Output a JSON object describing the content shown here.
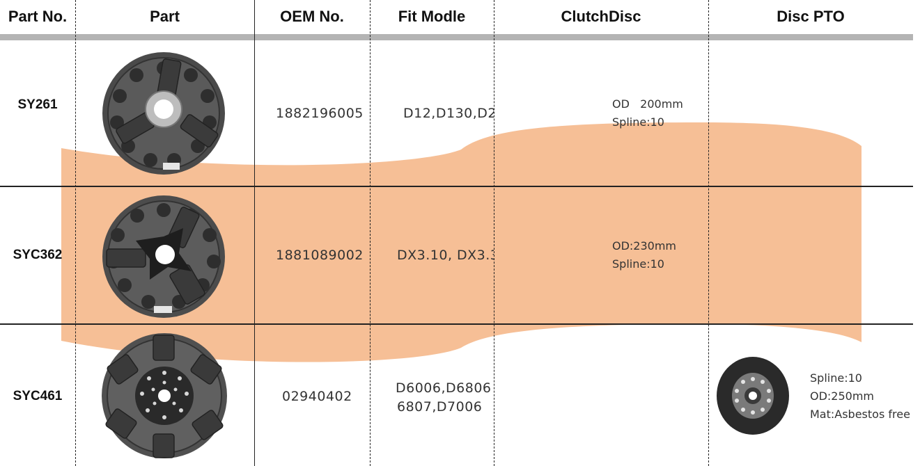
{
  "headers": {
    "part_no": "Part No.",
    "part": "Part",
    "oem_no": "OEM No.",
    "fit_model": "Fit Modle",
    "clutch_disc": "ClutchDisc",
    "disc_pto": "Disc PTO"
  },
  "rows": [
    {
      "part_no": "SY261",
      "part_icon": "clutch-pressure-plate",
      "oem_no": "1882196005",
      "fit_model": [
        "D12,D130,D2"
      ],
      "clutch_disc": [
        "OD   200mm",
        "Spline:10"
      ],
      "disc_pto": []
    },
    {
      "part_no": "SYC362",
      "part_icon": "clutch-pressure-plate",
      "oem_no": "1881089002",
      "fit_model": [
        "DX3.10, DX3.3"
      ],
      "clutch_disc": [
        "OD:230mm",
        "Spline:10"
      ],
      "disc_pto": []
    },
    {
      "part_no": "SYC461",
      "part_icon": "clutch-pressure-plate",
      "oem_no": "02940402",
      "fit_model": [
        "D6006,D6806",
        "6807,D7006"
      ],
      "clutch_disc": [],
      "disc_pto": [
        "Spline:10",
        "OD:250mm",
        "Mat:Asbestos free"
      ]
    }
  ],
  "colors": {
    "accent_band": "#f6bf96",
    "header_bar": "#b4b4b4",
    "grid": "#222222"
  }
}
